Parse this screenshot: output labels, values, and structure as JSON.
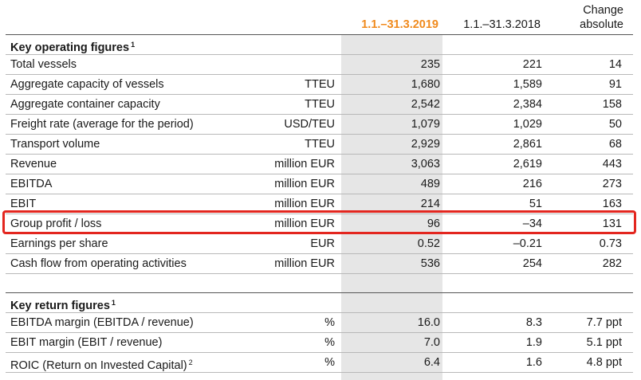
{
  "header": {
    "col_current": "1.1.–31.3.2019",
    "col_previous": "1.1.–31.3.2018",
    "col_change_line1": "Change",
    "col_change_line2": "absolute"
  },
  "section1": {
    "title": "Key operating figures",
    "footnote": "1",
    "rows": [
      {
        "label": "Total vessels",
        "unit": "",
        "v2019": "235",
        "v2018": "221",
        "change": "14"
      },
      {
        "label": "Aggregate capacity of vessels",
        "unit": "TTEU",
        "v2019": "1,680",
        "v2018": "1,589",
        "change": "91"
      },
      {
        "label": "Aggregate container capacity",
        "unit": "TTEU",
        "v2019": "2,542",
        "v2018": "2,384",
        "change": "158"
      },
      {
        "label": "Freight rate (average for the period)",
        "unit": "USD/TEU",
        "v2019": "1,079",
        "v2018": "1,029",
        "change": "50"
      },
      {
        "label": "Transport volume",
        "unit": "TTEU",
        "v2019": "2,929",
        "v2018": "2,861",
        "change": "68"
      },
      {
        "label": "Revenue",
        "unit": "million EUR",
        "v2019": "3,063",
        "v2018": "2,619",
        "change": "443"
      },
      {
        "label": "EBITDA",
        "unit": "million EUR",
        "v2019": "489",
        "v2018": "216",
        "change": "273"
      },
      {
        "label": "EBIT",
        "unit": "million EUR",
        "v2019": "214",
        "v2018": "51",
        "change": "163"
      },
      {
        "label": "Group profit / loss",
        "unit": "million EUR",
        "v2019": "96",
        "v2018": "–34",
        "change": "131"
      },
      {
        "label": "Earnings per share",
        "unit": "EUR",
        "v2019": "0.52",
        "v2018": "–0.21",
        "change": "0.73"
      },
      {
        "label": "Cash flow from operating activities",
        "unit": "million EUR",
        "v2019": "536",
        "v2018": "254",
        "change": "282"
      }
    ]
  },
  "section2": {
    "title": "Key return figures",
    "footnote": "1",
    "rows": [
      {
        "label": "EBITDA margin (EBITDA / revenue)",
        "unit": "%",
        "v2019": "16.0",
        "v2018": "8.3",
        "change": "7.7 ppt",
        "footnote": ""
      },
      {
        "label": "EBIT margin (EBIT / revenue)",
        "unit": "%",
        "v2019": "7.0",
        "v2018": "1.9",
        "change": "5.1 ppt",
        "footnote": ""
      },
      {
        "label": "ROIC (Return on Invested Capital)",
        "unit": "%",
        "v2019": "6.4",
        "v2018": "1.6",
        "change": "4.8 ppt",
        "footnote": "2"
      }
    ]
  },
  "colors": {
    "accent": "#f08a1c",
    "highlight_border": "#e3261f",
    "column_shade": "#e6e6e6"
  }
}
